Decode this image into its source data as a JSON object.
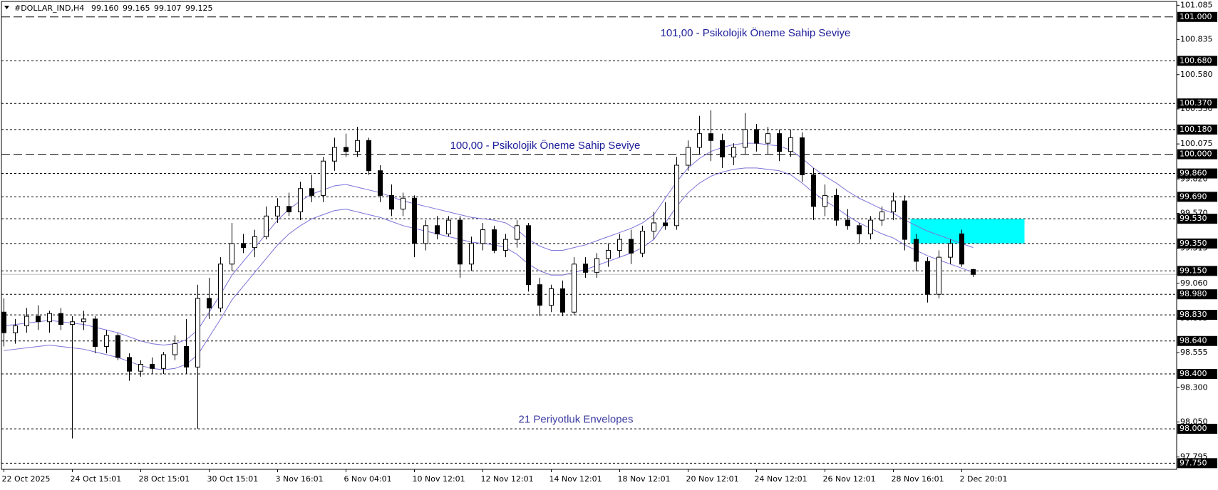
{
  "chart_data": {
    "type": "candlestick",
    "title": "#DOLLAR_IND,H4",
    "quote": [
      "99.160",
      "99.165",
      "99.107",
      "99.125"
    ],
    "categories": [
      "22 Oct 2025",
      null,
      null,
      null,
      null,
      null,
      "24 Oct 15:01",
      null,
      null,
      null,
      null,
      null,
      "28 Oct 15:01",
      null,
      null,
      null,
      null,
      null,
      "30 Oct 15:01",
      null,
      null,
      null,
      null,
      null,
      "3 Nov 16:01",
      null,
      null,
      null,
      null,
      null,
      "6 Nov 04:01",
      null,
      null,
      null,
      null,
      null,
      "10 Nov 12:01",
      null,
      null,
      null,
      null,
      null,
      "12 Nov 12:01",
      null,
      null,
      null,
      null,
      null,
      "14 Nov 12:01",
      null,
      null,
      null,
      null,
      null,
      "18 Nov 12:01",
      null,
      null,
      null,
      null,
      null,
      "20 Nov 12:01",
      null,
      null,
      null,
      null,
      null,
      "24 Nov 12:01",
      null,
      null,
      null,
      null,
      null,
      "26 Nov 12:01",
      null,
      null,
      null,
      null,
      null,
      "28 Nov 16:01",
      null,
      null,
      null,
      null,
      null,
      "2 Dec 20:01",
      null
    ],
    "ohlc": [
      [
        98.85,
        98.95,
        98.6,
        98.7
      ],
      [
        98.7,
        98.8,
        98.62,
        98.75
      ],
      [
        98.75,
        98.88,
        98.7,
        98.82
      ],
      [
        98.82,
        98.9,
        98.72,
        98.78
      ],
      [
        98.78,
        98.86,
        98.7,
        98.84
      ],
      [
        98.84,
        98.88,
        98.72,
        98.76
      ],
      [
        98.76,
        98.82,
        97.93,
        98.78
      ],
      [
        98.78,
        98.86,
        98.72,
        98.8
      ],
      [
        98.8,
        98.82,
        98.55,
        98.6
      ],
      [
        98.6,
        98.72,
        98.55,
        98.68
      ],
      [
        98.68,
        98.7,
        98.5,
        98.52
      ],
      [
        98.52,
        98.55,
        98.35,
        98.42
      ],
      [
        98.42,
        98.5,
        98.38,
        98.47
      ],
      [
        98.47,
        98.52,
        98.4,
        98.44
      ],
      [
        98.44,
        98.56,
        98.4,
        98.54
      ],
      [
        98.54,
        98.68,
        98.5,
        98.62
      ],
      [
        98.6,
        98.8,
        98.4,
        98.45
      ],
      [
        98.45,
        99.05,
        98.0,
        98.95
      ],
      [
        98.95,
        99.1,
        98.8,
        98.88
      ],
      [
        98.88,
        99.25,
        98.85,
        99.2
      ],
      [
        99.2,
        99.5,
        99.15,
        99.35
      ],
      [
        99.35,
        99.42,
        99.28,
        99.32
      ],
      [
        99.32,
        99.45,
        99.25,
        99.4
      ],
      [
        99.4,
        99.62,
        99.38,
        99.55
      ],
      [
        99.55,
        99.68,
        99.5,
        99.62
      ],
      [
        99.62,
        99.72,
        99.55,
        99.58
      ],
      [
        99.58,
        99.8,
        99.52,
        99.75
      ],
      [
        99.75,
        99.85,
        99.65,
        99.7
      ],
      [
        99.7,
        99.98,
        99.65,
        99.95
      ],
      [
        99.95,
        100.12,
        99.88,
        100.05
      ],
      [
        100.05,
        100.15,
        99.98,
        100.02
      ],
      [
        100.02,
        100.2,
        99.98,
        100.1
      ],
      [
        100.1,
        100.12,
        99.85,
        99.88
      ],
      [
        99.88,
        99.92,
        99.65,
        99.7
      ],
      [
        99.7,
        99.78,
        99.55,
        99.6
      ],
      [
        99.6,
        99.72,
        99.55,
        99.68
      ],
      [
        99.68,
        99.7,
        99.25,
        99.35
      ],
      [
        99.35,
        99.52,
        99.3,
        99.48
      ],
      [
        99.48,
        99.55,
        99.38,
        99.42
      ],
      [
        99.42,
        99.55,
        99.4,
        99.52
      ],
      [
        99.52,
        99.55,
        99.1,
        99.2
      ],
      [
        99.2,
        99.4,
        99.15,
        99.35
      ],
      [
        99.35,
        99.5,
        99.3,
        99.45
      ],
      [
        99.45,
        99.48,
        99.28,
        99.3
      ],
      [
        99.3,
        99.42,
        99.25,
        99.38
      ],
      [
        99.38,
        99.52,
        99.32,
        99.48
      ],
      [
        99.48,
        99.5,
        99.0,
        99.05
      ],
      [
        99.05,
        99.1,
        98.82,
        98.9
      ],
      [
        98.9,
        99.05,
        98.85,
        99.02
      ],
      [
        99.02,
        99.08,
        98.82,
        98.85
      ],
      [
        98.85,
        99.25,
        98.83,
        99.2
      ],
      [
        99.2,
        99.25,
        99.1,
        99.14
      ],
      [
        99.14,
        99.28,
        99.1,
        99.24
      ],
      [
        99.24,
        99.35,
        99.18,
        99.3
      ],
      [
        99.3,
        99.42,
        99.25,
        99.38
      ],
      [
        99.38,
        99.45,
        99.2,
        99.28
      ],
      [
        99.28,
        99.48,
        99.25,
        99.44
      ],
      [
        99.44,
        99.58,
        99.38,
        99.5
      ],
      [
        99.5,
        99.65,
        99.45,
        99.48
      ],
      [
        99.48,
        99.98,
        99.45,
        99.92
      ],
      [
        99.92,
        100.1,
        99.88,
        100.05
      ],
      [
        100.05,
        100.28,
        100.0,
        100.15
      ],
      [
        100.15,
        100.32,
        99.95,
        100.1
      ],
      [
        100.1,
        100.15,
        99.9,
        99.98
      ],
      [
        99.98,
        100.08,
        99.92,
        100.05
      ],
      [
        100.05,
        100.3,
        100.0,
        100.18
      ],
      [
        100.18,
        100.22,
        100.02,
        100.08
      ],
      [
        100.08,
        100.2,
        100.0,
        100.15
      ],
      [
        100.15,
        100.18,
        99.95,
        100.02
      ],
      [
        100.02,
        100.18,
        99.98,
        100.12
      ],
      [
        100.12,
        100.16,
        99.8,
        99.85
      ],
      [
        99.85,
        99.9,
        99.52,
        99.62
      ],
      [
        99.62,
        99.78,
        99.55,
        99.7
      ],
      [
        99.7,
        99.75,
        99.48,
        99.52
      ],
      [
        99.52,
        99.6,
        99.45,
        99.48
      ],
      [
        99.48,
        99.5,
        99.35,
        99.42
      ],
      [
        99.42,
        99.55,
        99.38,
        99.52
      ],
      [
        99.52,
        99.62,
        99.48,
        99.58
      ],
      [
        99.58,
        99.72,
        99.52,
        99.66
      ],
      [
        99.66,
        99.7,
        99.3,
        99.38
      ],
      [
        99.38,
        99.42,
        99.15,
        99.22
      ],
      [
        99.22,
        99.25,
        98.92,
        98.98
      ],
      [
        98.98,
        99.3,
        98.95,
        99.25
      ],
      [
        99.25,
        99.38,
        99.2,
        99.35
      ],
      [
        99.42,
        99.45,
        99.18,
        99.2
      ],
      [
        99.16,
        99.165,
        99.107,
        99.125
      ]
    ],
    "bull_color": "#ffffff",
    "bear_color": "#000000",
    "series": [
      {
        "name": "Upper Envelope",
        "color": "#7b72d8",
        "values": [
          98.75,
          98.76,
          98.77,
          98.78,
          98.79,
          98.78,
          98.77,
          98.76,
          98.74,
          98.72,
          98.7,
          98.67,
          98.64,
          98.62,
          98.61,
          98.62,
          98.65,
          98.72,
          98.85,
          98.98,
          99.12,
          99.22,
          99.32,
          99.42,
          99.52,
          99.6,
          99.66,
          99.71,
          99.74,
          99.77,
          99.78,
          99.76,
          99.74,
          99.72,
          99.69,
          99.66,
          99.64,
          99.62,
          99.6,
          99.58,
          99.56,
          99.54,
          99.53,
          99.52,
          99.5,
          99.45,
          99.38,
          99.33,
          99.3,
          99.3,
          99.32,
          99.34,
          99.37,
          99.4,
          99.43,
          99.46,
          99.5,
          99.56,
          99.68,
          99.8,
          99.9,
          99.97,
          100.02,
          100.05,
          100.07,
          100.08,
          100.08,
          100.07,
          100.06,
          100.03,
          99.97,
          99.9,
          99.84,
          99.79,
          99.73,
          99.68,
          99.64,
          99.6,
          99.57,
          99.52,
          99.48,
          99.44,
          99.41,
          99.38,
          99.35,
          99.32
        ]
      },
      {
        "name": "Lower Envelope",
        "color": "#7b72d8",
        "values": [
          98.57,
          98.58,
          98.59,
          98.6,
          98.61,
          98.6,
          98.59,
          98.58,
          98.56,
          98.54,
          98.52,
          98.49,
          98.46,
          98.44,
          98.43,
          98.44,
          98.47,
          98.54,
          98.67,
          98.8,
          98.94,
          99.04,
          99.14,
          99.24,
          99.34,
          99.42,
          99.48,
          99.53,
          99.56,
          99.59,
          99.6,
          99.58,
          99.56,
          99.54,
          99.51,
          99.48,
          99.46,
          99.44,
          99.42,
          99.4,
          99.38,
          99.36,
          99.35,
          99.34,
          99.32,
          99.27,
          99.2,
          99.15,
          99.12,
          99.12,
          99.14,
          99.16,
          99.19,
          99.22,
          99.25,
          99.28,
          99.32,
          99.38,
          99.5,
          99.62,
          99.72,
          99.79,
          99.84,
          99.87,
          99.89,
          99.9,
          99.9,
          99.89,
          99.88,
          99.85,
          99.79,
          99.72,
          99.66,
          99.61,
          99.55,
          99.5,
          99.46,
          99.42,
          99.39,
          99.34,
          99.3,
          99.26,
          99.23,
          99.2,
          99.17,
          99.14
        ]
      }
    ],
    "ylim": [
      97.705,
      101.113
    ],
    "yticks": [
      {
        "value": 101.085,
        "label": "101.085"
      },
      {
        "value": 100.835,
        "label": "100.835"
      },
      {
        "value": 100.58,
        "label": "100.580"
      },
      {
        "value": 100.33,
        "label": "100.330"
      },
      {
        "value": 100.075,
        "label": "100.075"
      },
      {
        "value": 99.82,
        "label": "99.820"
      },
      {
        "value": 99.57,
        "label": "99.570"
      },
      {
        "value": 99.315,
        "label": "99.315"
      },
      {
        "value": 99.06,
        "label": "99.060"
      },
      {
        "value": 98.805,
        "label": "98.805"
      },
      {
        "value": 98.555,
        "label": "98.555"
      },
      {
        "value": 98.3,
        "label": "98.300"
      },
      {
        "value": 98.05,
        "label": "98.050"
      },
      {
        "value": 97.795,
        "label": "97.795"
      }
    ],
    "levels": [
      {
        "value": 101,
        "label": "101.000",
        "style": "long-dash"
      },
      {
        "value": 100.68,
        "label": "100.680",
        "style": "dash"
      },
      {
        "value": 100.37,
        "label": "100.370",
        "style": "dash"
      },
      {
        "value": 100.18,
        "label": "100.180",
        "style": "dash"
      },
      {
        "value": 100,
        "label": "100.000",
        "style": "long-dash"
      },
      {
        "value": 99.86,
        "label": "99.860",
        "style": "dash"
      },
      {
        "value": 99.69,
        "label": "99.690",
        "style": "dash"
      },
      {
        "value": 99.53,
        "label": "99.530",
        "style": "dash"
      },
      {
        "value": 99.35,
        "label": "99.350",
        "style": "dash"
      },
      {
        "value": 99.15,
        "label": "99.150",
        "style": "dash"
      },
      {
        "value": 98.98,
        "label": "98.980",
        "style": "dash"
      },
      {
        "value": 98.83,
        "label": "98.830",
        "style": "dash"
      },
      {
        "value": 98.64,
        "label": "98.640",
        "style": "dash"
      },
      {
        "value": 98.4,
        "label": "98.400",
        "style": "dash"
      },
      {
        "value": 98,
        "label": "98.000",
        "style": "dash"
      },
      {
        "value": 97.75,
        "label": "97.750",
        "style": "dash"
      }
    ],
    "bid_line": 99.125,
    "zone": {
      "color": "#00ffff",
      "from": 99.35,
      "to": 99.53,
      "start": 80,
      "end": 90
    },
    "annotations": [
      "101,00 -  Psikolojik Öneme Sahip Seviye",
      "100,00 -  Psikolojik Öneme Sahip Seviye",
      "21 Periyotluk Envelopes"
    ]
  }
}
